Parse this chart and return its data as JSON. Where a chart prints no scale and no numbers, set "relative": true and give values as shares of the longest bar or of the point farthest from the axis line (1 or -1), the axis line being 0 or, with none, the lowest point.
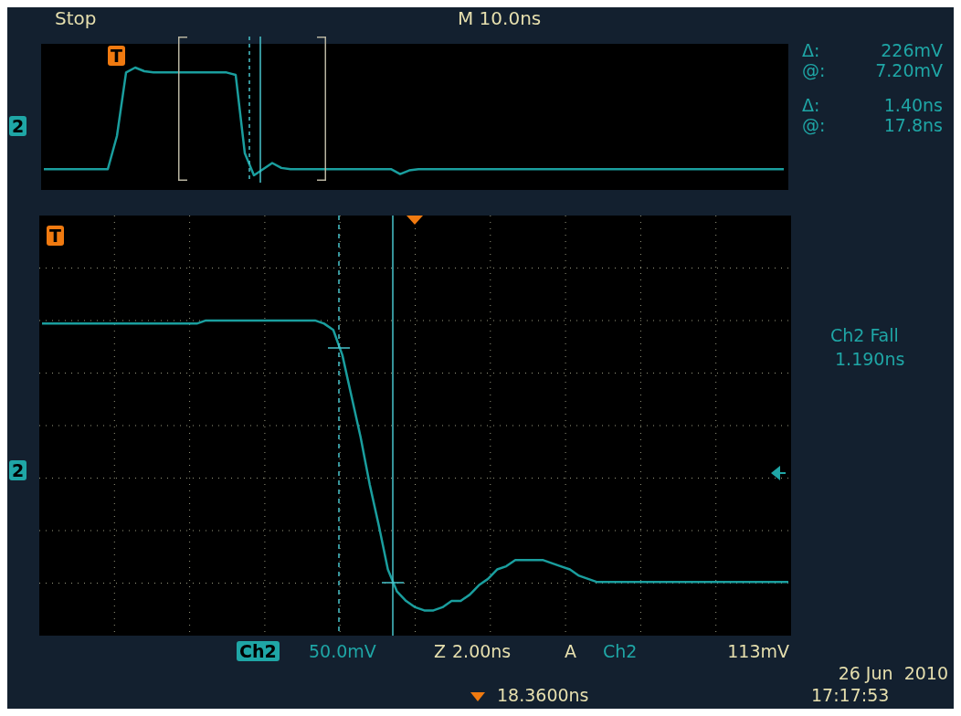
{
  "chart_data": [
    {
      "type": "line",
      "relative": true,
      "grid": false,
      "categories": [
        null,
        null,
        null,
        null,
        null,
        null,
        null,
        null,
        null,
        null,
        null,
        null,
        null,
        null,
        null,
        null,
        null,
        null,
        null,
        null,
        null,
        null,
        null,
        null,
        null,
        null,
        null,
        null,
        null,
        null,
        null,
        null,
        null,
        null,
        null,
        null,
        null,
        null,
        null,
        null,
        null,
        null,
        null,
        null,
        null,
        null,
        null,
        null,
        null,
        null,
        null,
        null,
        null,
        null,
        null,
        null,
        null,
        null,
        null,
        null,
        null,
        null,
        null,
        null,
        null,
        null,
        null,
        null,
        null,
        null,
        null,
        null,
        null,
        null,
        null,
        null,
        null,
        null,
        null,
        null,
        null,
        null
      ],
      "series": [
        {
          "color": "#1a9e9e",
          "values": [
            0.17,
            0.17,
            0.17,
            0.17,
            0.17,
            0.17,
            0.17,
            0.17,
            0.44,
            0.96,
            1,
            0.97,
            0.96,
            0.96,
            0.96,
            0.96,
            0.96,
            0.96,
            0.96,
            0.96,
            0.96,
            0.94,
            0.3,
            0.12,
            0.17,
            0.22,
            0.18,
            0.17,
            0.17,
            0.17,
            0.17,
            0.17,
            0.17,
            0.17,
            0.17,
            0.17,
            0.17,
            0.17,
            0.17,
            0.13,
            0.16,
            0.17,
            0.17,
            0.17,
            0.17,
            0.17,
            0.17,
            0.17,
            0.17,
            0.17,
            0.17,
            0.17,
            0.17,
            0.17,
            0.17,
            0.17,
            0.17,
            0.17,
            0.17,
            0.17,
            0.17,
            0.17,
            0.17,
            0.17,
            0.17,
            0.17,
            0.17,
            0.17,
            0.17,
            0.17,
            0.17,
            0.17,
            0.17,
            0.17,
            0.17,
            0.17,
            0.17,
            0.17,
            0.17,
            0.17,
            0.17,
            0.17
          ]
        }
      ],
      "annotations": [
        "Stop",
        "M 10.0ns",
        "Δ:",
        "226mV",
        "@:",
        "7.20mV",
        "Δ:",
        "1.40ns",
        "@:",
        "17.8ns",
        "2",
        "T"
      ]
    },
    {
      "type": "line",
      "relative": true,
      "grid": true,
      "categories": [
        null,
        null,
        null,
        null,
        null,
        null,
        null,
        null,
        null,
        null,
        null,
        null,
        null,
        null,
        null,
        null,
        null,
        null,
        null,
        null,
        null,
        null,
        null,
        null,
        null,
        null,
        null,
        null,
        null,
        null,
        null,
        null,
        null,
        null,
        null,
        null,
        null,
        null,
        null,
        null,
        null,
        null,
        null,
        null,
        null,
        null,
        null,
        null,
        null,
        null,
        null,
        null,
        null,
        null,
        null,
        null,
        null,
        null,
        null,
        null,
        null,
        null,
        null,
        null,
        null,
        null,
        null,
        null,
        null,
        null,
        null,
        null,
        null,
        null,
        null,
        null,
        null,
        null,
        null,
        null,
        null,
        null,
        null
      ],
      "series": [
        {
          "color": "#1a9e9e",
          "values": [
            0.99,
            0.99,
            0.99,
            0.99,
            0.99,
            0.99,
            0.99,
            0.99,
            0.99,
            0.99,
            0.99,
            0.99,
            0.99,
            0.99,
            0.99,
            0.99,
            0.99,
            0.99,
            1,
            1,
            1,
            1,
            1,
            1,
            1,
            1,
            1,
            1,
            1,
            1,
            1,
            0.99,
            0.97,
            0.89,
            0.76,
            0.63,
            0.48,
            0.35,
            0.21,
            0.14,
            0.11,
            0.09,
            0.08,
            0.08,
            0.09,
            0.11,
            0.11,
            0.13,
            0.16,
            0.18,
            0.21,
            0.22,
            0.24,
            0.24,
            0.24,
            0.24,
            0.23,
            0.22,
            0.21,
            0.19,
            0.18,
            0.17,
            0.17,
            0.17,
            0.17,
            0.17,
            0.17,
            0.17,
            0.17,
            0.17,
            0.17,
            0.17,
            0.17,
            0.17,
            0.17,
            0.17,
            0.17,
            0.17,
            0.17,
            0.17,
            0.17,
            0.17,
            0.17
          ]
        }
      ],
      "annotations": [
        "T",
        "2",
        "Ch2 Fall",
        "1.190ns",
        "Ch2",
        "50.0mV",
        "Z",
        "2.00ns",
        "A",
        "Ch2",
        "113mV",
        "18.3600ns",
        "26 Jun  2010",
        "17:17:53"
      ]
    }
  ]
}
